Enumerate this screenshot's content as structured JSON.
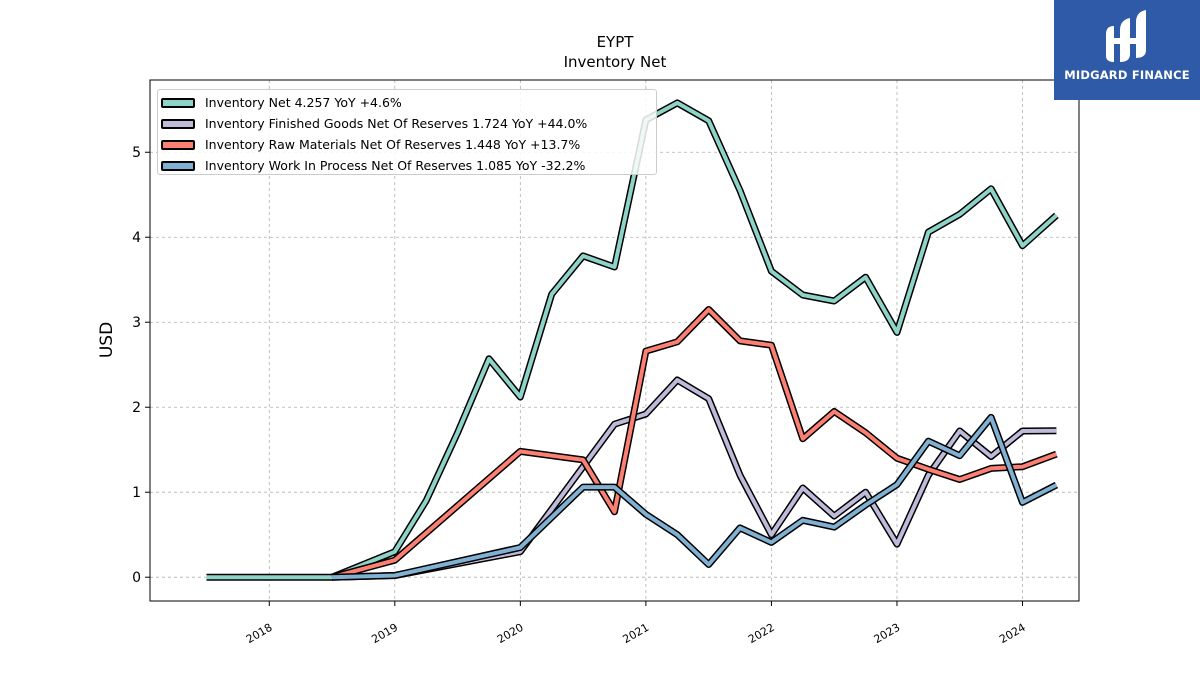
{
  "chart_data": {
    "type": "line",
    "title": "EYPT",
    "subtitle": "Inventory Net",
    "ylabel": "USD",
    "xlabel": "",
    "ylim": [
      -0.28,
      5.85
    ],
    "xlim": [
      2017.05,
      2024.45
    ],
    "yticks": [
      0,
      1,
      2,
      3,
      4,
      5
    ],
    "xticks": [
      2018,
      2019,
      2020,
      2021,
      2022,
      2023,
      2024
    ],
    "grid": true,
    "legend_position": "top-left",
    "series": [
      {
        "name": "Inventory Net",
        "legend": "Inventory Net  4.257 YoY +4.6%",
        "color": "#8dd3c7",
        "points": [
          [
            2017.5,
            0
          ],
          [
            2018.5,
            0
          ],
          [
            2019.0,
            0.3
          ],
          [
            2019.25,
            0.9
          ],
          [
            2019.5,
            1.7
          ],
          [
            2019.75,
            2.57
          ],
          [
            2020.0,
            2.12
          ],
          [
            2020.25,
            3.33
          ],
          [
            2020.5,
            3.78
          ],
          [
            2020.75,
            3.65
          ],
          [
            2021.0,
            5.38
          ],
          [
            2021.25,
            5.58
          ],
          [
            2021.5,
            5.37
          ],
          [
            2021.75,
            4.55
          ],
          [
            2022.0,
            3.6
          ],
          [
            2022.25,
            3.32
          ],
          [
            2022.5,
            3.25
          ],
          [
            2022.75,
            3.53
          ],
          [
            2023.0,
            2.88
          ],
          [
            2023.25,
            4.06
          ],
          [
            2023.5,
            4.27
          ],
          [
            2023.75,
            4.57
          ],
          [
            2024.0,
            3.9
          ],
          [
            2024.27,
            4.257
          ]
        ]
      },
      {
        "name": "Inventory Finished Goods Net Of Reserves",
        "legend": "Inventory Finished Goods Net Of Reserves  1.724 YoY +44.0%",
        "color": "#bebada",
        "points": [
          [
            2018.5,
            0
          ],
          [
            2019.0,
            0.02
          ],
          [
            2020.0,
            0.3
          ],
          [
            2020.25,
            0.8
          ],
          [
            2020.5,
            1.3
          ],
          [
            2020.75,
            1.8
          ],
          [
            2021.0,
            1.92
          ],
          [
            2021.25,
            2.32
          ],
          [
            2021.5,
            2.1
          ],
          [
            2021.75,
            1.2
          ],
          [
            2022.0,
            0.5
          ],
          [
            2022.25,
            1.05
          ],
          [
            2022.5,
            0.72
          ],
          [
            2022.75,
            1.0
          ],
          [
            2023.0,
            0.39
          ],
          [
            2023.25,
            1.2
          ],
          [
            2023.5,
            1.72
          ],
          [
            2023.75,
            1.42
          ],
          [
            2024.0,
            1.72
          ],
          [
            2024.27,
            1.724
          ]
        ]
      },
      {
        "name": "Inventory Raw Materials Net Of Reserves",
        "legend": "Inventory Raw Materials Net Of Reserves  1.448 YoY +13.7%",
        "color": "#fb8072",
        "points": [
          [
            2018.5,
            0
          ],
          [
            2019.0,
            0.2
          ],
          [
            2020.0,
            1.48
          ],
          [
            2020.5,
            1.38
          ],
          [
            2020.75,
            0.77
          ],
          [
            2021.0,
            2.66
          ],
          [
            2021.25,
            2.77
          ],
          [
            2021.5,
            3.15
          ],
          [
            2021.75,
            2.78
          ],
          [
            2022.0,
            2.73
          ],
          [
            2022.25,
            1.63
          ],
          [
            2022.5,
            1.95
          ],
          [
            2022.75,
            1.7
          ],
          [
            2023.0,
            1.4
          ],
          [
            2023.25,
            1.27
          ],
          [
            2023.5,
            1.15
          ],
          [
            2023.75,
            1.28
          ],
          [
            2024.0,
            1.3
          ],
          [
            2024.27,
            1.448
          ]
        ]
      },
      {
        "name": "Inventory Work In Process Net Of Reserves",
        "legend": "Inventory Work In Process Net Of Reserves  1.085 YoY -32.2%",
        "color": "#80b1d3",
        "points": [
          [
            2018.5,
            0
          ],
          [
            2019.0,
            0.02
          ],
          [
            2020.0,
            0.35
          ],
          [
            2020.5,
            1.06
          ],
          [
            2020.75,
            1.06
          ],
          [
            2021.0,
            0.74
          ],
          [
            2021.25,
            0.5
          ],
          [
            2021.5,
            0.15
          ],
          [
            2021.75,
            0.58
          ],
          [
            2022.0,
            0.41
          ],
          [
            2022.25,
            0.67
          ],
          [
            2022.5,
            0.59
          ],
          [
            2022.75,
            0.85
          ],
          [
            2023.0,
            1.09
          ],
          [
            2023.25,
            1.6
          ],
          [
            2023.5,
            1.43
          ],
          [
            2023.75,
            1.88
          ],
          [
            2024.0,
            0.88
          ],
          [
            2024.27,
            1.085
          ]
        ]
      }
    ]
  },
  "logo": {
    "name": "MIDGARD FINANCE",
    "bg_color": "#2f5aa8"
  }
}
